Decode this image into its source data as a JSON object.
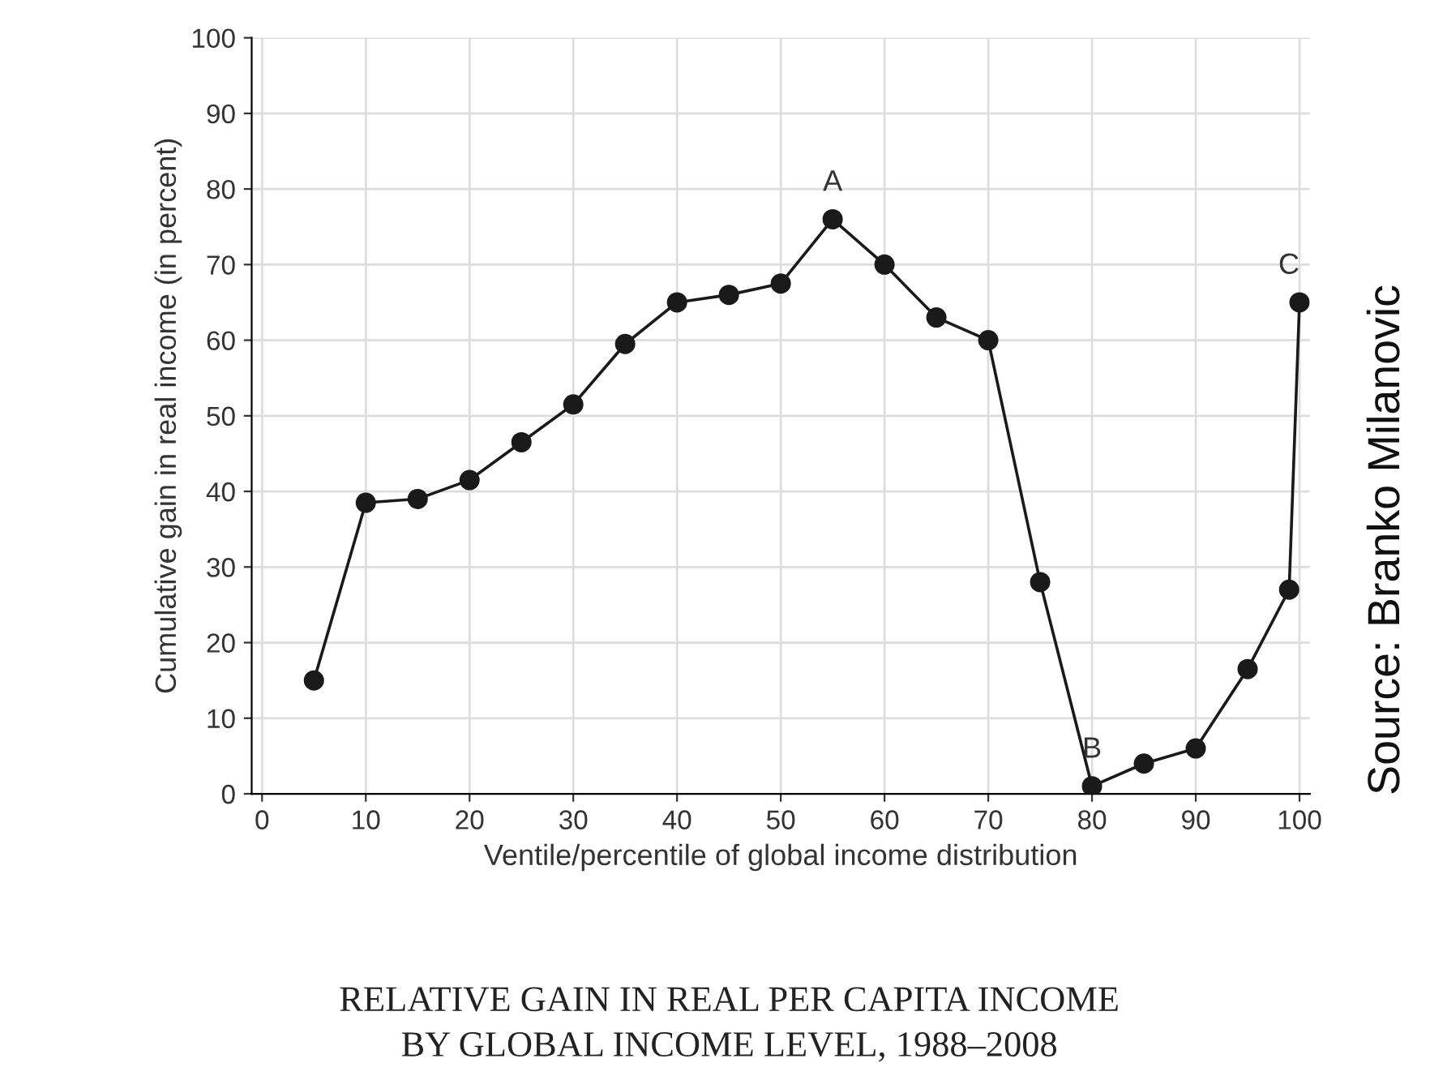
{
  "chart_data": {
    "type": "line",
    "title": "RELATIVE GAIN IN REAL PER CAPITA INCOME\nBY GLOBAL INCOME LEVEL, 1988–2008",
    "xlabel": "Ventile/percentile of global income distribution",
    "ylabel": "Cumulative gain in real income (in percent)",
    "x": [
      5,
      10,
      15,
      20,
      25,
      30,
      35,
      40,
      45,
      50,
      55,
      60,
      65,
      70,
      75,
      80,
      85,
      90,
      95,
      99,
      100
    ],
    "series": [
      {
        "color": "#1a1a1a",
        "values": [
          15,
          38.5,
          39,
          41.5,
          46.5,
          51.5,
          59.5,
          65,
          66,
          67.5,
          76,
          70,
          63,
          60,
          28,
          1,
          4,
          6,
          16.5,
          27,
          65
        ]
      }
    ],
    "xlim": [
      -1,
      101
    ],
    "ylim": [
      0,
      100
    ],
    "xticks": [
      0,
      10,
      20,
      30,
      40,
      50,
      60,
      70,
      80,
      90,
      100
    ],
    "yticks": [
      0,
      10,
      20,
      30,
      40,
      50,
      60,
      70,
      80,
      90,
      100
    ],
    "grid": true,
    "marker": "circle",
    "line_style": "solid",
    "annotations": [
      {
        "text": "A",
        "x": 55,
        "y": 76
      },
      {
        "text": "B",
        "x": 80,
        "y": 1
      },
      {
        "text": "C",
        "x": 100,
        "y": 65
      },
      "Source: Branko Milanovic"
    ]
  }
}
